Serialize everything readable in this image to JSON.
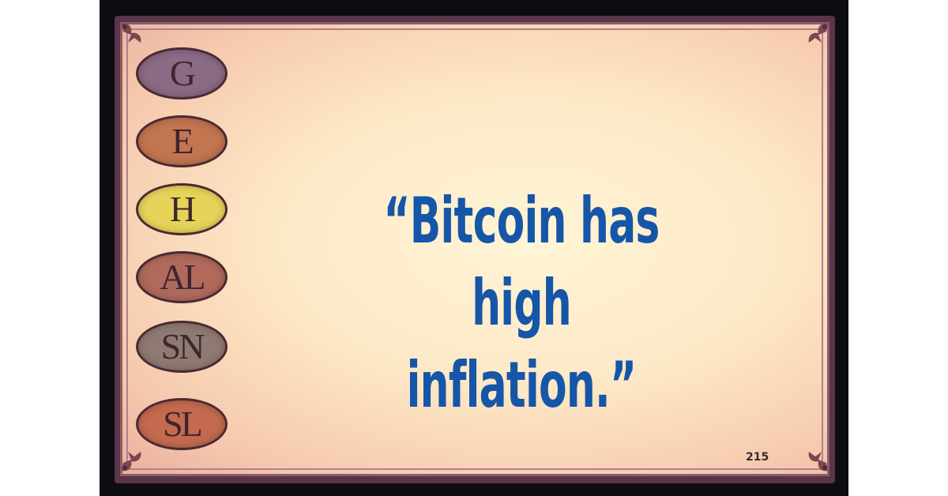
{
  "card": {
    "ovals": [
      {
        "label": "G",
        "color": "#8b6a86"
      },
      {
        "label": "E",
        "color": "#c2754f"
      },
      {
        "label": "H",
        "color": "#e6d45a"
      },
      {
        "label": "AL",
        "color": "#b06a5c"
      },
      {
        "label": "SN",
        "color": "#8f7a72"
      },
      {
        "label": "SL",
        "color": "#c46a4e"
      }
    ],
    "quote_line1": "“Bitcoin has high",
    "quote_line2": "inflation.”",
    "page_number": "215"
  },
  "colors": {
    "quote_text": "#1656a8",
    "card_background": "#fde8c6",
    "frame": "#0d0c10"
  }
}
